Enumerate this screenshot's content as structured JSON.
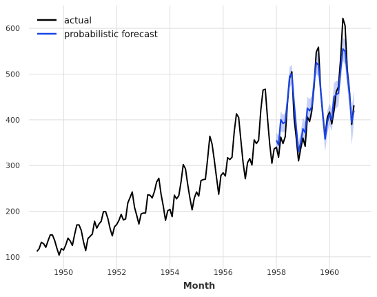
{
  "chart_data": {
    "type": "line",
    "xlabel": "Month",
    "ylabel": "",
    "xlim": [
      1948.7,
      1961.55
    ],
    "ylim": [
      62,
      650
    ],
    "grid": true,
    "legend_position": "top-left",
    "x_ticks": [
      1950,
      1952,
      1954,
      1956,
      1958,
      1960
    ],
    "y_ticks": [
      100,
      200,
      300,
      400,
      500,
      600
    ],
    "series": [
      {
        "name": "actual",
        "color": "#000000",
        "start": 1949.0,
        "step": 0.083333,
        "values": [
          112,
          118,
          132,
          129,
          121,
          135,
          148,
          148,
          136,
          119,
          104,
          118,
          115,
          126,
          141,
          135,
          125,
          149,
          170,
          170,
          158,
          133,
          114,
          140,
          145,
          150,
          178,
          163,
          172,
          178,
          199,
          199,
          184,
          162,
          146,
          166,
          171,
          180,
          193,
          181,
          183,
          218,
          230,
          242,
          209,
          191,
          172,
          194,
          196,
          196,
          236,
          235,
          229,
          243,
          264,
          272,
          237,
          211,
          180,
          201,
          204,
          188,
          235,
          227,
          234,
          264,
          302,
          293,
          259,
          229,
          203,
          229,
          242,
          233,
          267,
          269,
          270,
          315,
          364,
          347,
          312,
          274,
          237,
          278,
          284,
          277,
          317,
          313,
          318,
          374,
          413,
          405,
          355,
          306,
          271,
          306,
          315,
          301,
          356,
          348,
          355,
          422,
          465,
          467,
          404,
          347,
          305,
          336,
          340,
          318,
          362,
          348,
          363,
          435,
          491,
          505,
          404,
          359,
          310,
          337,
          360,
          342,
          406,
          396,
          420,
          472,
          548,
          559,
          463,
          407,
          362,
          405,
          417,
          391,
          419,
          461,
          472,
          535,
          622,
          606,
          508,
          461,
          390,
          432
        ]
      },
      {
        "name": "probabilistic forecast",
        "color": "#1a44e6",
        "start": 1958.0,
        "step": 0.083333,
        "values": [
          355,
          345,
          400,
          392,
          395,
          440,
          495,
          500,
          435,
          380,
          330,
          350,
          380,
          372,
          425,
          420,
          428,
          480,
          525,
          520,
          465,
          410,
          358,
          395,
          412,
          400,
          450,
          455,
          458,
          510,
          555,
          550,
          500,
          455,
          395,
          420
        ],
        "band_low": [
          340,
          325,
          375,
          372,
          375,
          420,
          470,
          478,
          410,
          355,
          310,
          330,
          355,
          350,
          400,
          398,
          405,
          455,
          500,
          495,
          440,
          385,
          330,
          370,
          390,
          375,
          420,
          425,
          430,
          480,
          530,
          520,
          470,
          425,
          345,
          395
        ],
        "band_high": [
          372,
          365,
          418,
          410,
          415,
          462,
          515,
          520,
          460,
          405,
          350,
          372,
          405,
          395,
          450,
          445,
          452,
          505,
          550,
          545,
          490,
          435,
          385,
          420,
          435,
          425,
          480,
          485,
          485,
          540,
          580,
          575,
          530,
          485,
          425,
          465
        ]
      }
    ]
  }
}
